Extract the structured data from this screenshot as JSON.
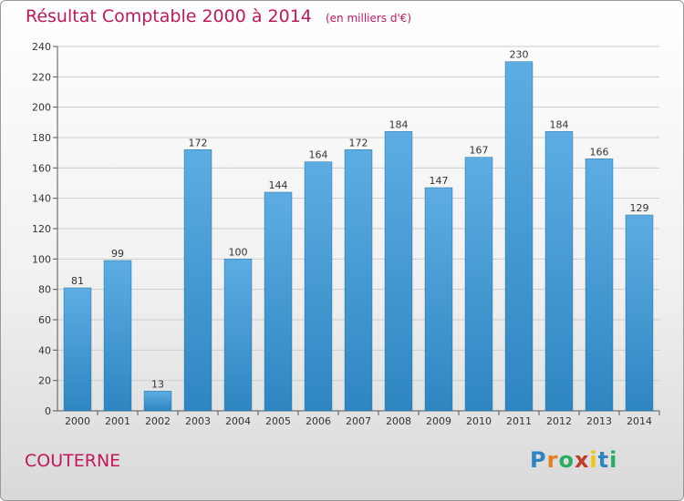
{
  "header": {
    "title": "Résultat Comptable 2000 à 2014",
    "subtitle": "(en milliers d'€)"
  },
  "footer": {
    "commune": "COUTERNE",
    "logo_letters": [
      "P",
      "r",
      "o",
      "x",
      "i",
      "t",
      "i"
    ],
    "logo_colors": [
      "#2e86c1",
      "#e67e22",
      "#27ae60",
      "#c0392b",
      "#f1c40f",
      "#2e86c1",
      "#27ae60"
    ]
  },
  "chart_data": {
    "type": "bar",
    "title": "Résultat Comptable 2000 à 2014",
    "subtitle": "(en milliers d'€)",
    "categories": [
      "2000",
      "2001",
      "2002",
      "2003",
      "2004",
      "2005",
      "2006",
      "2007",
      "2008",
      "2009",
      "2010",
      "2011",
      "2012",
      "2013",
      "2014"
    ],
    "values": [
      81,
      99,
      13,
      172,
      100,
      144,
      164,
      172,
      184,
      147,
      167,
      230,
      184,
      166,
      129
    ],
    "ylim": [
      0,
      240
    ],
    "yticks": [
      0,
      20,
      40,
      60,
      80,
      100,
      120,
      140,
      160,
      180,
      200,
      220,
      240
    ],
    "grid": true,
    "colors": {
      "bar_top": "#5dade2",
      "bar_bottom": "#2e86c1",
      "grid": "#cccccc",
      "axis": "#555555"
    }
  }
}
